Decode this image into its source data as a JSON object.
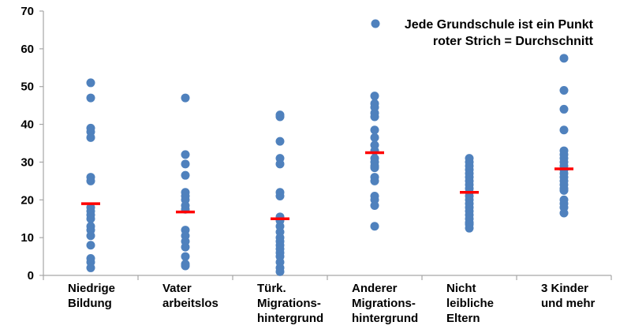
{
  "chart_data": {
    "type": "scatter",
    "title": "",
    "xlabel": "",
    "ylabel": "",
    "ylim": [
      0,
      70
    ],
    "yticks": [
      0,
      10,
      20,
      30,
      40,
      50,
      60,
      70
    ],
    "grid": false,
    "legend": {
      "placement": "top-right",
      "points_label": "Jede Grundschule ist ein Punkt",
      "mean_label": "roter Strich = Durchschnitt"
    },
    "colors": {
      "points": "#4f81bd",
      "mean": "#ff0000",
      "axis": "#a6a6a6"
    },
    "categories": [
      {
        "label_lines": [
          "Niedrige",
          "Bildung"
        ],
        "values": [
          51,
          47,
          39,
          38,
          36.5,
          26,
          25,
          18,
          17,
          16,
          15,
          13,
          12,
          10.5,
          8,
          4.5,
          3.5,
          2
        ],
        "mean": 19
      },
      {
        "label_lines": [
          "Vater",
          "arbeitslos"
        ],
        "values": [
          47,
          32,
          29.5,
          26.5,
          22,
          21,
          20,
          18.5,
          17.5,
          12,
          10.5,
          9,
          7.5,
          5,
          3,
          2.5
        ],
        "mean": 16.8
      },
      {
        "label_lines": [
          "Türk.",
          "Migrations-",
          "hintergrund"
        ],
        "values": [
          42.5,
          42,
          35.5,
          31,
          29.5,
          22,
          21,
          15.5,
          14.5,
          13,
          11.5,
          10,
          9,
          8,
          7,
          6,
          5,
          3.5,
          2,
          1
        ],
        "mean": 15
      },
      {
        "label_lines": [
          "Anderer",
          "Migrations-",
          "hintergrund"
        ],
        "values": [
          47.5,
          45.5,
          44.5,
          43,
          42,
          38.5,
          36.5,
          34.5,
          33,
          31,
          30,
          29,
          28.5,
          26,
          25,
          21,
          20,
          18.5,
          13
        ],
        "mean": 32.5
      },
      {
        "label_lines": [
          "Nicht",
          "leibliche",
          "Eltern"
        ],
        "values": [
          31,
          30,
          29,
          28,
          27,
          26,
          25,
          24,
          23,
          22,
          21,
          20,
          19,
          18,
          17,
          16,
          15,
          14,
          13.5,
          12.5
        ],
        "mean": 22
      },
      {
        "label_lines": [
          "3 Kinder",
          "und mehr"
        ],
        "values": [
          57.5,
          49,
          44,
          38.5,
          33,
          32,
          31,
          30,
          29,
          28,
          27,
          26,
          25,
          24,
          23,
          22.5,
          20,
          19,
          18,
          16.5
        ],
        "mean": 28.2
      }
    ]
  }
}
